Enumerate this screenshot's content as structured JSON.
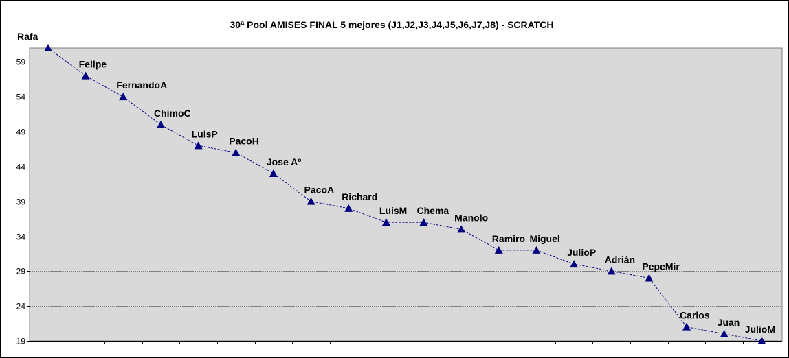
{
  "chart_data": {
    "type": "line",
    "title": "30ª Pool AMISES FINAL 5 mejores (J1,J2,J3,J4,J5,J6,J7,J8)  - SCRATCH",
    "xlabel": "",
    "ylabel": "",
    "ylim": [
      19,
      61
    ],
    "yticks": [
      19,
      24,
      29,
      34,
      39,
      44,
      49,
      54,
      59
    ],
    "grid": true,
    "marker": "triangle",
    "line_style": "dashed",
    "colors": {
      "series": "#000080",
      "plot_bg": "#d9d9d9",
      "grid": "#808080"
    },
    "series": [
      {
        "points": [
          {
            "label": "Rafa",
            "value": 61
          },
          {
            "label": "Felipe",
            "value": 57
          },
          {
            "label": "FernandoA",
            "value": 54
          },
          {
            "label": "ChimoC",
            "value": 50
          },
          {
            "label": "LuisP",
            "value": 47
          },
          {
            "label": "PacoH",
            "value": 46
          },
          {
            "label": "Jose Aº",
            "value": 43
          },
          {
            "label": "PacoA",
            "value": 39
          },
          {
            "label": "Richard",
            "value": 38
          },
          {
            "label": "LuisM",
            "value": 36
          },
          {
            "label": "Chema",
            "value": 36
          },
          {
            "label": "Manolo",
            "value": 35
          },
          {
            "label": "Ramiro",
            "value": 32
          },
          {
            "label": "Miguel",
            "value": 32
          },
          {
            "label": "JulioP",
            "value": 30
          },
          {
            "label": "Adrián",
            "value": 29
          },
          {
            "label": "PepeMir",
            "value": 28
          },
          {
            "label": "Carlos",
            "value": 21
          },
          {
            "label": "Juan",
            "value": 20
          },
          {
            "label": "JulioM",
            "value": 19
          }
        ]
      }
    ]
  }
}
